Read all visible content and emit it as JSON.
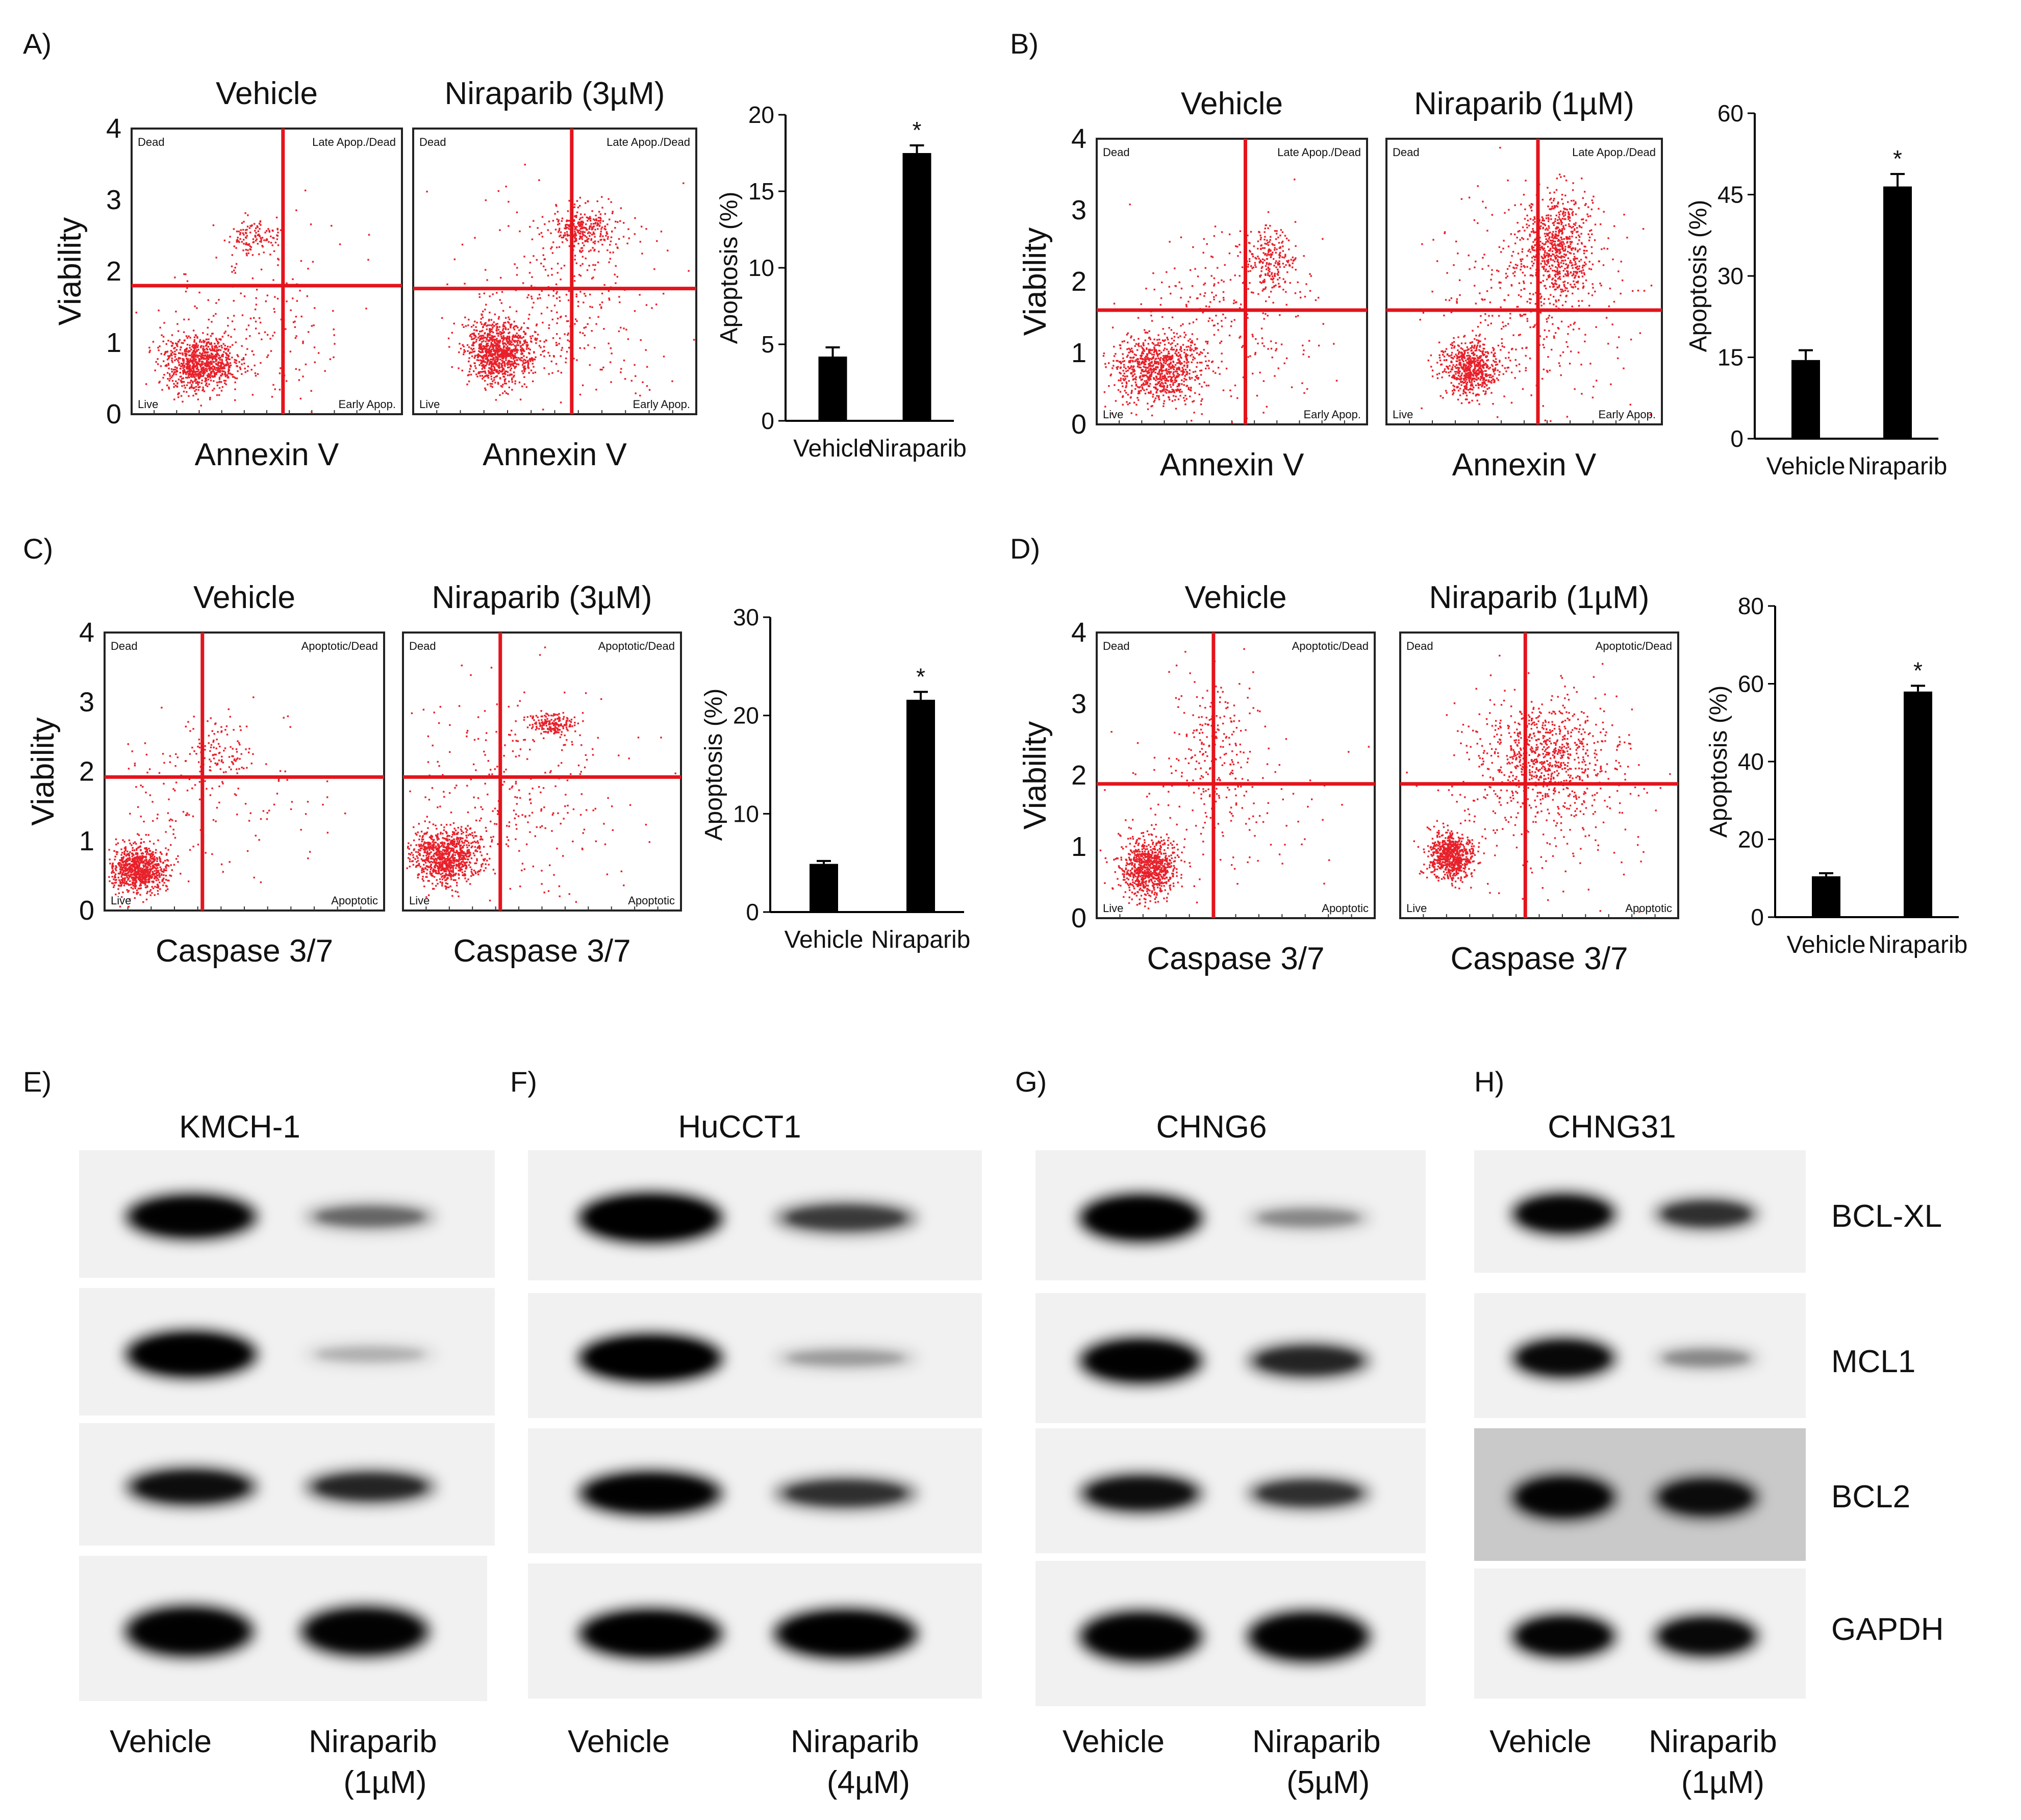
{
  "colors": {
    "dots": "#e8202a",
    "gate": "#e4141c",
    "bar": "#000000"
  },
  "panels": [
    {
      "label": "A)",
      "kind": "annexin",
      "titles": [
        "Vehicle",
        "Niraparib (3µM)"
      ],
      "ylabel": "Viability",
      "xlabel": "Annexin V",
      "yticks": [
        "0",
        "1",
        "2",
        "3",
        "4"
      ],
      "quadrants": {
        "tl": "Dead",
        "tr": "Late Apop./Dead",
        "bl": "Live",
        "br": "Early Apop."
      },
      "chart_data": {
        "type": "bar",
        "categories": [
          "Vehicle",
          "Niraparib"
        ],
        "values": [
          4.2,
          17.5
        ],
        "errors": [
          0.6,
          0.5
        ],
        "ylabel": "Apoptosis (%)",
        "ylim": [
          0,
          20
        ],
        "yticks": [
          "0",
          "5",
          "10",
          "15",
          "20"
        ],
        "significance": [
          "",
          "*"
        ]
      }
    },
    {
      "label": "B)",
      "kind": "annexin",
      "titles": [
        "Vehicle",
        "Niraparib (1µM)"
      ],
      "ylabel": "Viability",
      "xlabel": "Annexin V",
      "yticks": [
        "0",
        "1",
        "2",
        "3",
        "4"
      ],
      "quadrants": {
        "tl": "Dead",
        "tr": "Late Apop./Dead",
        "bl": "Live",
        "br": "Early Apop."
      },
      "chart_data": {
        "type": "bar",
        "categories": [
          "Vehicle",
          "Niraparib"
        ],
        "values": [
          14.5,
          46.5
        ],
        "errors": [
          1.8,
          2.3
        ],
        "ylabel": "Apoptosis (%)",
        "ylim": [
          0,
          60
        ],
        "yticks": [
          "0",
          "15",
          "30",
          "45",
          "60"
        ],
        "significance": [
          "",
          "*"
        ]
      }
    },
    {
      "label": "C)",
      "kind": "caspase",
      "titles": [
        "Vehicle",
        "Niraparib (3µM)"
      ],
      "ylabel": "Viability",
      "xlabel": "Caspase 3/7",
      "yticks": [
        "0",
        "1",
        "2",
        "3",
        "4"
      ],
      "quadrants": {
        "tl": "Dead",
        "tr": "Apoptotic/Dead",
        "bl": "Live",
        "br": "Apoptotic"
      },
      "chart_data": {
        "type": "bar",
        "categories": [
          "Vehicle",
          "Niraparib"
        ],
        "values": [
          4.9,
          21.6
        ],
        "errors": [
          0.3,
          0.8
        ],
        "ylabel": "Apoptosis (%)",
        "ylim": [
          0,
          30
        ],
        "yticks": [
          "0",
          "10",
          "20",
          "30"
        ],
        "significance": [
          "",
          "*"
        ]
      }
    },
    {
      "label": "D)",
      "kind": "caspase",
      "titles": [
        "Vehicle",
        "Niraparib (1µM)"
      ],
      "ylabel": "Viability",
      "xlabel": "Caspase 3/7",
      "yticks": [
        "0",
        "1",
        "2",
        "3",
        "4"
      ],
      "quadrants": {
        "tl": "Dead",
        "tr": "Apoptotic/Dead",
        "bl": "Live",
        "br": "Apoptotic"
      },
      "chart_data": {
        "type": "bar",
        "categories": [
          "Vehicle",
          "Niraparib"
        ],
        "values": [
          10.5,
          58
        ],
        "errors": [
          0.8,
          1.5
        ],
        "ylabel": "Apoptosis (%)",
        "ylim": [
          0,
          80
        ],
        "yticks": [
          "0",
          "20",
          "40",
          "60",
          "80"
        ],
        "significance": [
          "",
          "*"
        ]
      }
    }
  ],
  "western": {
    "proteins": [
      "BCL-XL",
      "MCL1",
      "BCL2",
      "GAPDH"
    ],
    "panels": [
      {
        "label": "E)",
        "cell_line": "KMCH-1",
        "lanes": [
          "Vehicle",
          "Niraparib",
          "(1µM)"
        ]
      },
      {
        "label": "F)",
        "cell_line": "HuCCT1",
        "lanes": [
          "Vehicle",
          "Niraparib",
          "(4µM)"
        ]
      },
      {
        "label": "G)",
        "cell_line": "CHNG6",
        "lanes": [
          "Vehicle",
          "Niraparib",
          "(5µM)"
        ]
      },
      {
        "label": "H)",
        "cell_line": "CHNG31",
        "lanes": [
          "Vehicle",
          "Niraparib",
          "(1µM)"
        ]
      }
    ]
  }
}
